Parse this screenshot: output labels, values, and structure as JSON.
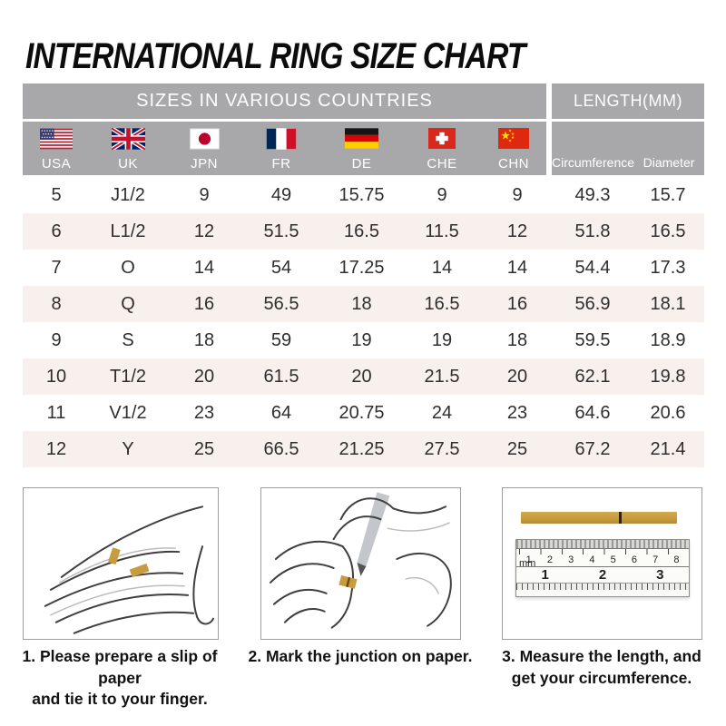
{
  "chart_data": {
    "type": "table",
    "title": "INTERNATIONAL RING SIZE CHART",
    "group_headers": [
      "SIZES IN VARIOUS COUNTRIES",
      "LENGTH(MM)"
    ],
    "columns": [
      "USA",
      "UK",
      "JPN",
      "FR",
      "DE",
      "CHE",
      "CHN",
      "Circumference",
      "Diameter"
    ],
    "rows": [
      [
        "5",
        "J1/2",
        "9",
        "49",
        "15.75",
        "9",
        "9",
        "49.3",
        "15.7"
      ],
      [
        "6",
        "L1/2",
        "12",
        "51.5",
        "16.5",
        "11.5",
        "12",
        "51.8",
        "16.5"
      ],
      [
        "7",
        "O",
        "14",
        "54",
        "17.25",
        "14",
        "14",
        "54.4",
        "17.3"
      ],
      [
        "8",
        "Q",
        "16",
        "56.5",
        "18",
        "16.5",
        "16",
        "56.9",
        "18.1"
      ],
      [
        "9",
        "S",
        "18",
        "59",
        "19",
        "19",
        "18",
        "59.5",
        "18.9"
      ],
      [
        "10",
        "T1/2",
        "20",
        "61.5",
        "20",
        "21.5",
        "20",
        "62.1",
        "19.8"
      ],
      [
        "11",
        "V1/2",
        "23",
        "64",
        "20.75",
        "24",
        "23",
        "64.6",
        "20.6"
      ],
      [
        "12",
        "Y",
        "25",
        "66.5",
        "21.25",
        "27.5",
        "25",
        "67.2",
        "21.4"
      ]
    ]
  },
  "flags": {
    "icons": [
      "usa-flag",
      "uk-flag",
      "japan-flag",
      "france-flag",
      "germany-flag",
      "switzerland-flag",
      "china-flag"
    ]
  },
  "steps": [
    {
      "illustration": "hand-with-paper-strip-illustration",
      "caption_line1": "1. Please prepare a slip of paper",
      "caption_line2": "and tie it to your finger."
    },
    {
      "illustration": "mark-junction-illustration",
      "caption_line1": "2. Mark the junction on paper.",
      "caption_line2": ""
    },
    {
      "illustration": "ruler-measurement-illustration",
      "caption_line1": "3. Measure the length, and",
      "caption_line2": "get your circumference."
    }
  ],
  "ruler": {
    "unit_label": "mm",
    "cm_labels": [
      "1",
      "2",
      "3",
      "4",
      "5",
      "6",
      "7",
      "8"
    ],
    "inch_labels": [
      "1",
      "2",
      "3"
    ]
  },
  "colors": {
    "header_gray": "#a8a8aa",
    "row_stripe": "#f8f0ec",
    "paper_gold": "#c79b3f",
    "title_black": "#0c0c0c"
  }
}
